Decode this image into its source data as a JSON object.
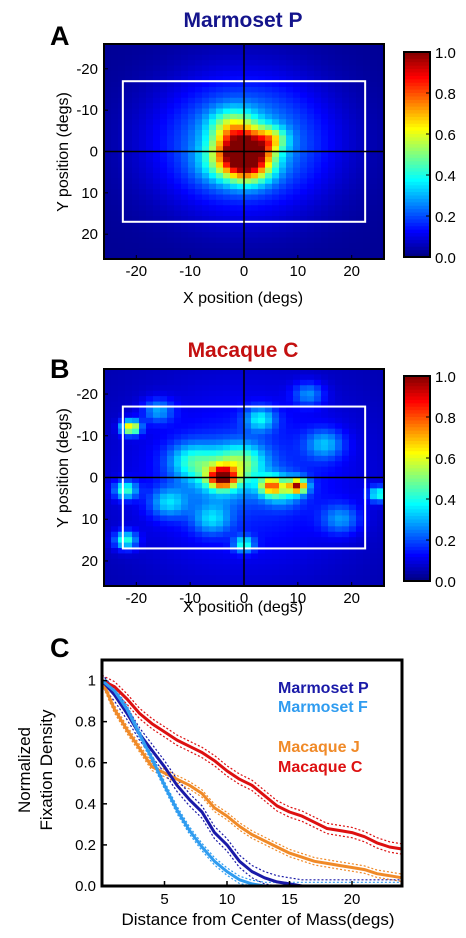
{
  "panels": {
    "a": {
      "letter": "A"
    },
    "b": {
      "letter": "B"
    },
    "c": {
      "letter": "C"
    }
  },
  "colors": {
    "marmoset_p": "#1a1aa8",
    "marmoset_f": "#2f9cf0",
    "macaque_j": "#f08a28",
    "macaque_c": "#dd1111",
    "title_a": "#14148c",
    "title_b": "#c41010"
  },
  "chart_data": [
    {
      "type": "heatmap",
      "title": "Marmoset P",
      "xlabel": "X position (degs)",
      "ylabel": "Y position (degs)",
      "xlim": [
        -26,
        26
      ],
      "ylim": [
        -26,
        26
      ],
      "y_inverted": true,
      "x_ticks": [
        "-20",
        "-10",
        "0",
        "10",
        "20"
      ],
      "y_ticks": [
        "-20",
        "-10",
        "0",
        "10",
        "20"
      ],
      "colorbar": {
        "range": [
          0.0,
          1.0
        ],
        "ticks": [
          "1.0",
          "0.8",
          "0.6",
          "0.4",
          "0.2",
          "0.0"
        ],
        "colormap": "jet"
      },
      "colorbar_ticks_top_down": [
        "1.0",
        "0.8",
        "0.6",
        "0.4",
        "0.2",
        "0.0"
      ],
      "grid_cells": 40,
      "background_value": 0.02,
      "blobs": [
        {
          "x": 0,
          "y": 0,
          "sigma": 3.2,
          "amplitude": 0.85
        },
        {
          "x": 1,
          "y": 4,
          "sigma": 3.0,
          "amplitude": 0.35
        },
        {
          "x": -2,
          "y": -6,
          "sigma": 3.0,
          "amplitude": 0.3
        },
        {
          "x": 0,
          "y": -2,
          "sigma": 11,
          "amplitude": 0.3
        },
        {
          "x": 5,
          "y": -3,
          "sigma": 2.0,
          "amplitude": 0.3
        },
        {
          "x": -4,
          "y": 3,
          "sigma": 3.5,
          "amplitude": 0.15
        }
      ],
      "reference_rectangle": {
        "x_range": [
          -22.5,
          22.5
        ],
        "y_range": [
          -17,
          17
        ]
      },
      "crosshair": {
        "x": 0,
        "y": 0
      }
    },
    {
      "type": "heatmap",
      "title": "Macaque C",
      "xlabel": "X position (degs)",
      "ylabel": "Y position (degs)",
      "xlim": [
        -26,
        26
      ],
      "ylim": [
        -26,
        26
      ],
      "y_inverted": true,
      "x_ticks": [
        "-20",
        "-10",
        "0",
        "10",
        "20"
      ],
      "y_ticks": [
        "-20",
        "-10",
        "0",
        "10",
        "20"
      ],
      "colorbar": {
        "range": [
          0.0,
          1.0
        ],
        "ticks": [
          "1.0",
          "0.8",
          "0.6",
          "0.4",
          "0.2",
          "0.0"
        ],
        "colormap": "jet"
      },
      "colorbar_ticks_top_down": [
        "1.0",
        "0.8",
        "0.6",
        "0.4",
        "0.2",
        "0.0"
      ],
      "grid_cells": 40,
      "background_value": 0.04,
      "blobs": [
        {
          "x": -4,
          "y": 0,
          "sigma": 1.6,
          "amplitude": 0.75
        },
        {
          "x": -4,
          "y": -1,
          "sigma": 4.0,
          "amplitude": 0.3
        },
        {
          "x": 10,
          "y": 2,
          "sigma": 1.2,
          "amplitude": 0.7
        },
        {
          "x": 5,
          "y": 2,
          "sigma": 1.5,
          "amplitude": 0.45
        },
        {
          "x": 7,
          "y": 3,
          "sigma": 2.5,
          "amplitude": 0.25
        },
        {
          "x": -21,
          "y": -12,
          "sigma": 1.2,
          "amplitude": 0.6
        },
        {
          "x": -22,
          "y": 3,
          "sigma": 1.5,
          "amplitude": 0.35
        },
        {
          "x": -22,
          "y": 15,
          "sigma": 1.5,
          "amplitude": 0.35
        },
        {
          "x": 0,
          "y": 16,
          "sigma": 1.3,
          "amplitude": 0.3
        },
        {
          "x": 25,
          "y": 4,
          "sigma": 1.3,
          "amplitude": 0.35
        },
        {
          "x": 0,
          "y": -4,
          "sigma": 3.0,
          "amplitude": 0.22
        },
        {
          "x": 3,
          "y": -14,
          "sigma": 2.0,
          "amplitude": 0.25
        },
        {
          "x": -10,
          "y": -4,
          "sigma": 3.0,
          "amplitude": 0.22
        },
        {
          "x": -14,
          "y": 6,
          "sigma": 2.5,
          "amplitude": 0.22
        },
        {
          "x": 15,
          "y": -8,
          "sigma": 2.5,
          "amplitude": 0.2
        },
        {
          "x": 18,
          "y": 10,
          "sigma": 2.5,
          "amplitude": 0.18
        },
        {
          "x": -16,
          "y": -16,
          "sigma": 2.0,
          "amplitude": 0.2
        },
        {
          "x": 12,
          "y": -20,
          "sigma": 2.0,
          "amplitude": 0.18
        },
        {
          "x": -6,
          "y": 10,
          "sigma": 2.5,
          "amplitude": 0.2
        },
        {
          "x": 0,
          "y": 0,
          "sigma": 16,
          "amplitude": 0.14
        }
      ],
      "reference_rectangle": {
        "x_range": [
          -22.5,
          22.5
        ],
        "y_range": [
          -17,
          17
        ]
      },
      "crosshair": {
        "x": 0,
        "y": 0
      }
    },
    {
      "type": "line",
      "title": "",
      "xlabel": "Distance from Center of Mass(degs)",
      "ylabel_lines": [
        "Normalized",
        "Fixation  Density"
      ],
      "xlim": [
        0,
        24
      ],
      "ylim": [
        0,
        1.1
      ],
      "x_ticks": [
        5,
        10,
        15,
        20
      ],
      "y_ticks": [
        0.0,
        0.2,
        0.4,
        0.6,
        0.8,
        1
      ],
      "y_tick_labels": [
        "0.0",
        "0.2",
        "0.4",
        "0.6",
        "0.8",
        "1"
      ],
      "legend_position": "top-right",
      "series": [
        {
          "name": "Macaque C",
          "color_key": "macaque_c",
          "x": [
            0,
            1,
            2,
            3,
            4,
            5,
            6,
            7,
            8,
            9,
            10,
            11,
            12,
            13,
            14,
            15,
            16,
            17,
            18,
            19,
            20,
            21,
            22,
            23,
            24
          ],
          "y": [
            1.0,
            0.97,
            0.91,
            0.84,
            0.79,
            0.75,
            0.71,
            0.68,
            0.65,
            0.61,
            0.56,
            0.52,
            0.49,
            0.44,
            0.39,
            0.36,
            0.34,
            0.31,
            0.28,
            0.27,
            0.26,
            0.24,
            0.21,
            0.19,
            0.18
          ],
          "band": 0.025
        },
        {
          "name": "Macaque J",
          "color_key": "macaque_j",
          "x": [
            0,
            1,
            2,
            3,
            4,
            5,
            6,
            7,
            8,
            9,
            10,
            11,
            12,
            13,
            14,
            15,
            16,
            17,
            18,
            19,
            20,
            21,
            22,
            23,
            24
          ],
          "y": [
            1.0,
            0.86,
            0.76,
            0.67,
            0.58,
            0.55,
            0.52,
            0.49,
            0.45,
            0.38,
            0.34,
            0.29,
            0.25,
            0.22,
            0.19,
            0.16,
            0.14,
            0.12,
            0.11,
            0.1,
            0.09,
            0.08,
            0.06,
            0.05,
            0.04
          ],
          "band": 0.018
        },
        {
          "name": "Marmoset P",
          "color_key": "marmoset_p",
          "x": [
            0,
            1,
            2,
            3,
            4,
            5,
            6,
            7,
            8,
            9,
            10,
            11,
            12,
            13,
            14,
            15,
            16,
            17,
            18,
            19,
            20,
            21,
            22,
            23,
            24
          ],
          "y": [
            1.0,
            0.93,
            0.84,
            0.74,
            0.66,
            0.58,
            0.49,
            0.42,
            0.36,
            0.26,
            0.2,
            0.12,
            0.07,
            0.04,
            0.02,
            0.01,
            0.0,
            0.0,
            0.0,
            0.0,
            0.0,
            0.0,
            0.0,
            0.0,
            0.0
          ],
          "band": 0.03
        },
        {
          "name": "Marmoset  F",
          "color_key": "marmoset_f",
          "x": [
            0,
            1,
            2,
            3,
            4,
            5,
            6,
            7,
            8,
            9,
            10,
            11,
            12,
            13,
            14,
            15,
            16,
            17,
            18,
            19,
            20,
            21,
            22,
            23,
            24
          ],
          "y": [
            1.0,
            0.95,
            0.86,
            0.74,
            0.62,
            0.49,
            0.37,
            0.27,
            0.19,
            0.12,
            0.07,
            0.03,
            0.01,
            0.0,
            0.0,
            0.0,
            0.0,
            0.0,
            0.0,
            0.0,
            0.0,
            0.0,
            0.0,
            0.0,
            0.0
          ],
          "band": 0.018
        }
      ],
      "legend_order": [
        "Marmoset  P",
        "Marmoset  F",
        "Macaque J",
        "Macaque C"
      ],
      "legend_colors": [
        "marmoset_p",
        "marmoset_f",
        "macaque_j",
        "macaque_c"
      ]
    }
  ]
}
